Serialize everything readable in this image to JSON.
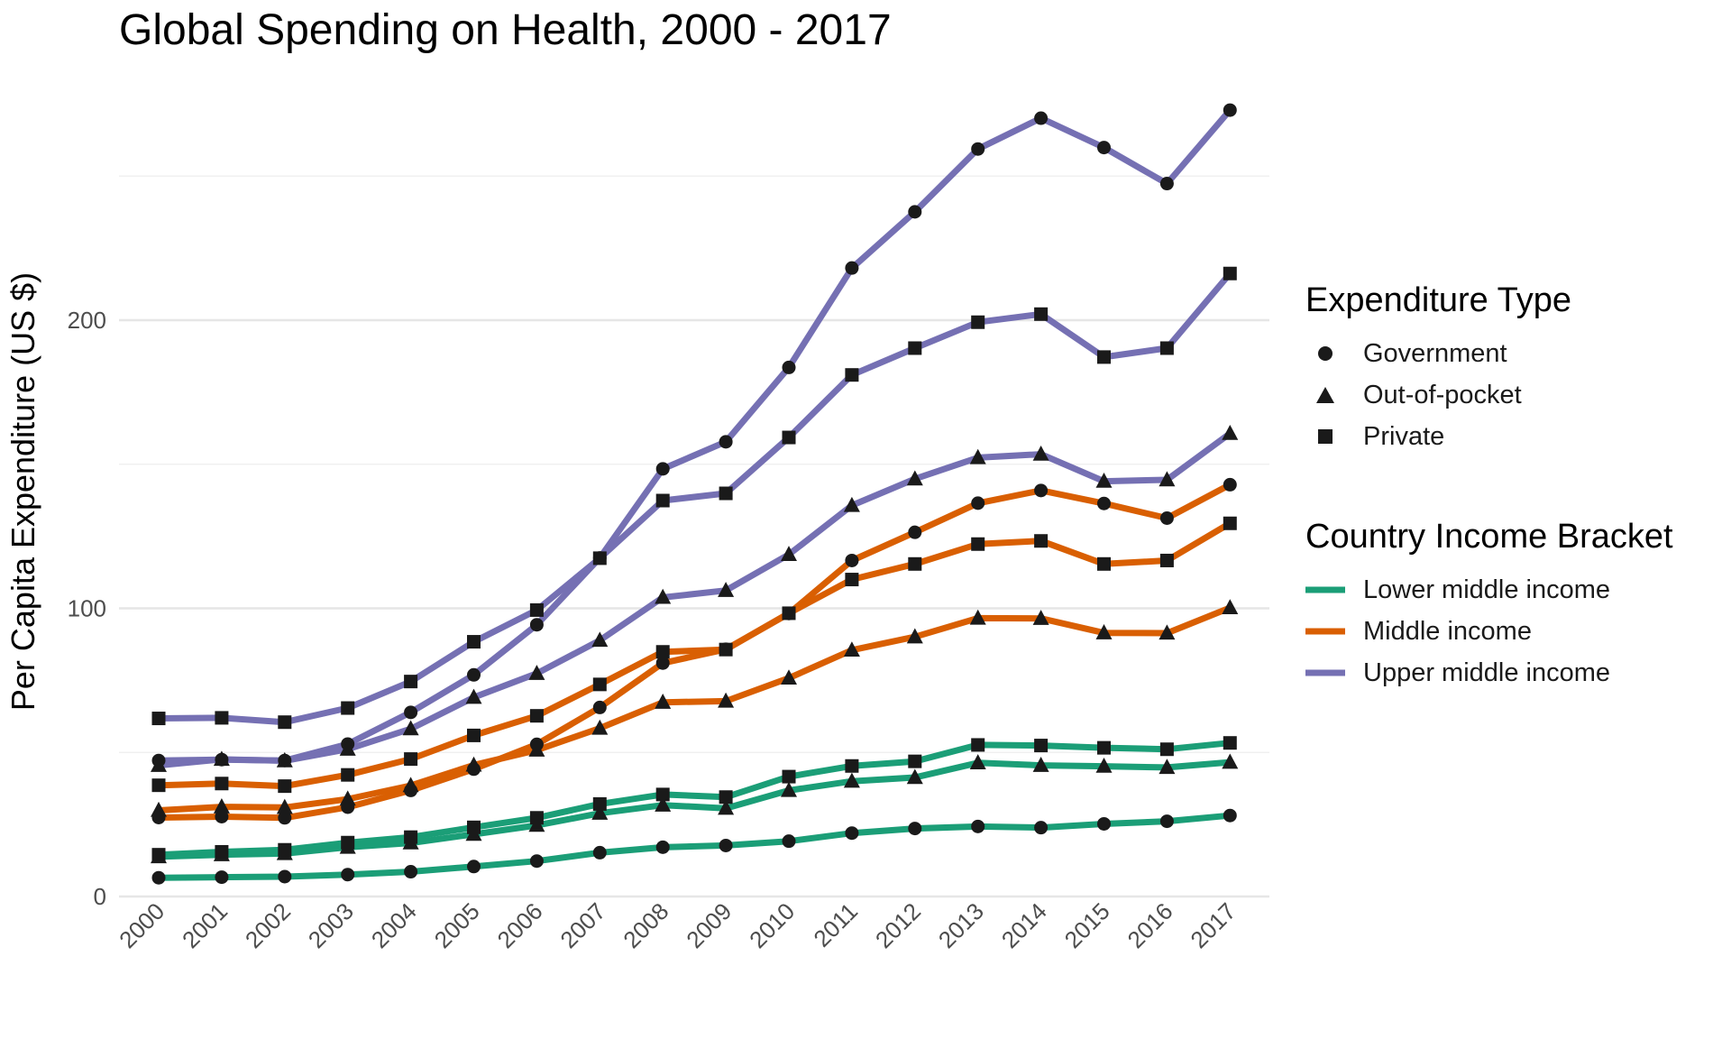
{
  "chart_data": {
    "type": "line",
    "title": "Global Spending on Health, 2000 - 2017",
    "xlabel": "",
    "ylabel": "Per Capita Expenditure (US $)",
    "categories": [
      "2000",
      "2001",
      "2002",
      "2003",
      "2004",
      "2005",
      "2006",
      "2007",
      "2008",
      "2009",
      "2010",
      "2011",
      "2012",
      "2013",
      "2014",
      "2015",
      "2016",
      "2017"
    ],
    "ylim": [
      0,
      275
    ],
    "y_ticks": [
      0,
      100,
      200
    ],
    "grid": true,
    "legend_position": "right",
    "series": [
      {
        "group": "Lower middle income",
        "shape": "Government",
        "color": "#1b9e77",
        "values": [
          6.5,
          6.7,
          6.9,
          7.6,
          8.6,
          10.4,
          12.3,
          15.2,
          17.1,
          17.7,
          19.2,
          22.0,
          23.6,
          24.3,
          23.9,
          25.2,
          26.1,
          28.1
        ]
      },
      {
        "group": "Lower middle income",
        "shape": "Out-of-pocket",
        "color": "#1b9e77",
        "values": [
          13.8,
          14.5,
          14.9,
          17.1,
          18.6,
          21.6,
          24.7,
          28.9,
          31.7,
          30.6,
          36.8,
          40.0,
          41.3,
          46.4,
          45.5,
          45.2,
          44.8,
          46.6
        ]
      },
      {
        "group": "Lower middle income",
        "shape": "Private",
        "color": "#1b9e77",
        "values": [
          14.5,
          15.5,
          16.2,
          18.7,
          20.6,
          24.0,
          27.3,
          32.1,
          35.4,
          34.5,
          41.6,
          45.3,
          46.9,
          52.6,
          52.4,
          51.6,
          51.1,
          53.3
        ]
      },
      {
        "group": "Middle income",
        "shape": "Government",
        "color": "#d95f02",
        "values": [
          27.4,
          27.7,
          27.3,
          31.0,
          36.8,
          44.2,
          52.8,
          65.6,
          81.0,
          85.8,
          98.2,
          116.6,
          126.4,
          136.5,
          140.9,
          136.4,
          131.3,
          142.9
        ]
      },
      {
        "group": "Middle income",
        "shape": "Out-of-pocket",
        "color": "#d95f02",
        "values": [
          29.9,
          31.1,
          30.9,
          33.8,
          38.5,
          45.6,
          50.8,
          58.4,
          67.4,
          67.8,
          75.8,
          85.5,
          90.1,
          96.6,
          96.5,
          91.5,
          91.4,
          100.2
        ]
      },
      {
        "group": "Middle income",
        "shape": "Private",
        "color": "#d95f02",
        "values": [
          38.6,
          39.2,
          38.3,
          42.2,
          47.7,
          55.9,
          62.7,
          73.6,
          84.9,
          85.7,
          98.3,
          110.0,
          115.4,
          122.3,
          123.4,
          115.4,
          116.6,
          129.5
        ]
      },
      {
        "group": "Upper middle income",
        "shape": "Government",
        "color": "#7570b3",
        "values": [
          47.2,
          47.5,
          47.2,
          52.9,
          63.9,
          76.9,
          94.3,
          117.5,
          148.4,
          157.8,
          183.6,
          218.1,
          237.6,
          259.4,
          270.1,
          259.9,
          247.4,
          272.9
        ]
      },
      {
        "group": "Upper middle income",
        "shape": "Out-of-pocket",
        "color": "#7570b3",
        "values": [
          45.5,
          47.6,
          47.1,
          51.1,
          58.2,
          69.1,
          77.4,
          88.9,
          103.8,
          106.2,
          118.7,
          135.7,
          144.9,
          152.3,
          153.5,
          144.1,
          144.6,
          160.7
        ]
      },
      {
        "group": "Upper middle income",
        "shape": "Private",
        "color": "#7570b3",
        "values": [
          61.8,
          62.0,
          60.5,
          65.4,
          74.6,
          88.4,
          99.4,
          117.4,
          137.4,
          139.9,
          159.3,
          181.0,
          190.3,
          199.3,
          202.1,
          187.2,
          190.3,
          216.2
        ]
      }
    ]
  },
  "legend": {
    "shape_title": "Expenditure Type",
    "shape_items": [
      {
        "label": "Government",
        "icon": "circle-icon"
      },
      {
        "label": "Out-of-pocket",
        "icon": "triangle-icon"
      },
      {
        "label": "Private",
        "icon": "square-icon"
      }
    ],
    "color_title": "Country Income Bracket",
    "color_items": [
      {
        "label": "Lower middle income",
        "color": "#1b9e77"
      },
      {
        "label": "Middle income",
        "color": "#d95f02"
      },
      {
        "label": "Upper middle income",
        "color": "#7570b3"
      }
    ]
  }
}
